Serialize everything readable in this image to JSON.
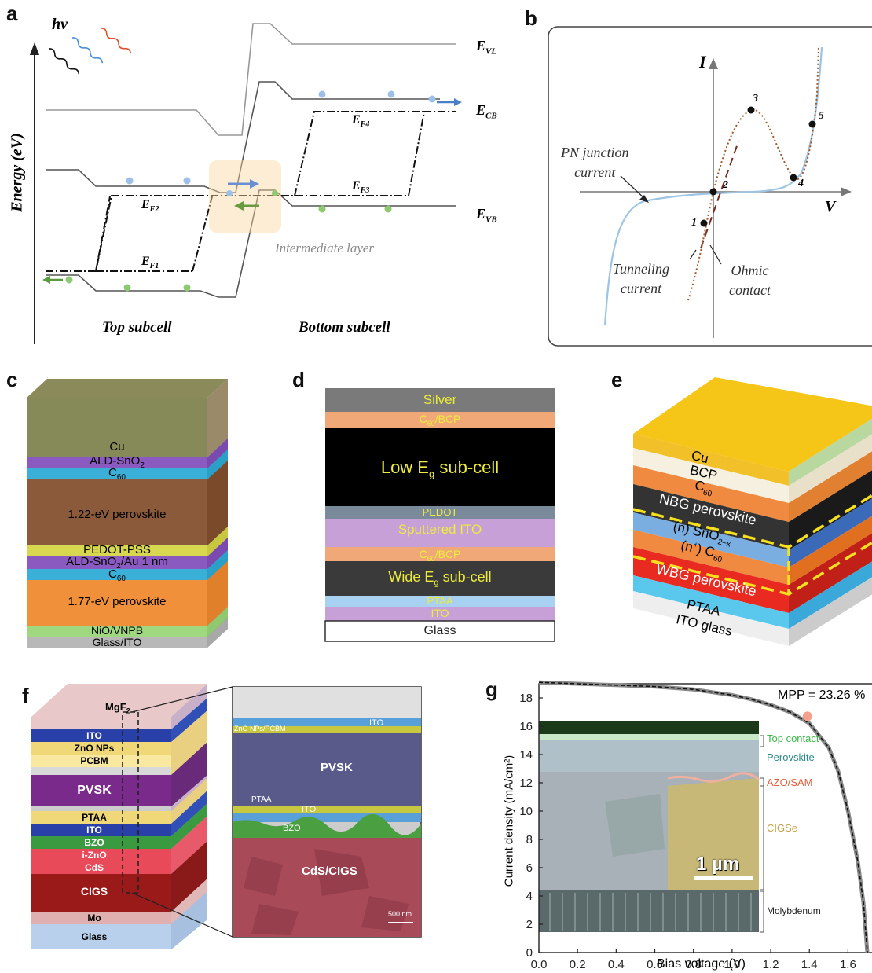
{
  "panel_labels": [
    "a",
    "b",
    "c",
    "d",
    "e",
    "f",
    "g"
  ],
  "panel_a": {
    "hv": "hv",
    "y_axis": "Energy (eV)",
    "levels": {
      "vl": "E",
      "vl_sub": "VL",
      "cb": "E",
      "cb_sub": "CB",
      "vb": "E",
      "vb_sub": "VB"
    },
    "fermi": {
      "f1": "E",
      "f1_sub": "F1",
      "f2": "E",
      "f2_sub": "F2",
      "f3": "E",
      "f3_sub": "F3",
      "f4": "E",
      "f4_sub": "F4"
    },
    "intermediate": "Intermediate layer",
    "top_subcell": "Top subcell",
    "bottom_subcell": "Bottom subcell"
  },
  "panel_b": {
    "y_axis": "I",
    "x_axis": "V",
    "pn_line1": "PN junction",
    "pn_line2": "current",
    "tunnel_line1": "Tunneling",
    "tunnel_line2": "current",
    "ohmic_line1": "Ohmic",
    "ohmic_line2": "contact",
    "points": [
      "1",
      "2",
      "3",
      "4",
      "5"
    ]
  },
  "panel_c": {
    "layers": [
      "Cu",
      "ALD-SnO",
      "C",
      "1.22-eV perovskite",
      "PEDOT-PSS",
      "ALD-SnO",
      "/Au 1 nm",
      "C",
      "1.77-eV perovskite",
      "NiO/VNPB",
      "Glass/ITO"
    ],
    "sub2": "2",
    "sub60": "60"
  },
  "panel_d": {
    "layers": [
      "Silver",
      "C",
      "/BCP",
      "Low E",
      "sub-cell",
      "PEDOT",
      "Sputtered ITO",
      "C",
      "/BCP",
      "Wide E",
      "sub-cell",
      "PTAA",
      "ITO",
      "Glass"
    ],
    "sub60": "60",
    "subg": "g"
  },
  "panel_e": {
    "layers": [
      "Cu",
      "BCP",
      "C",
      "NBG perovskite",
      "(n) SnO",
      "(n",
      "+",
      ") C",
      "WBG perovskite",
      "PTAA",
      "ITO glass"
    ],
    "sub60": "60",
    "sub2x": "2−x"
  },
  "panel_f": {
    "stack": [
      "MgF",
      "ITO",
      "ZnO NPs",
      "PCBM",
      "PVSK",
      "PTAA",
      "ITO",
      "BZO",
      "i-ZnO",
      "CdS",
      "CIGS",
      "Mo",
      "Glass"
    ],
    "mgf_sub": "2",
    "sem": [
      "ZnO NPs/PCBM",
      "ITO",
      "PVSK",
      "PTAA",
      "ITO",
      "BZO",
      "CdS/CIGS",
      "500 nm"
    ]
  },
  "chart_data": {
    "type": "line",
    "title": "",
    "xlabel": "Bias voltage (V)",
    "ylabel": "Current density (mA/cm²)",
    "xlim": [
      0,
      1.7
    ],
    "ylim": [
      0,
      19
    ],
    "x_ticks": [
      "0.0",
      "0.2",
      "0.4",
      "0.6",
      "0.8",
      "1.0",
      "1.2",
      "1.4",
      "1.6"
    ],
    "y_ticks": [
      "0",
      "2",
      "4",
      "6",
      "8",
      "10",
      "12",
      "14",
      "16",
      "18"
    ],
    "series": [
      {
        "x": [
          0,
          0.2,
          0.4,
          0.6,
          0.8,
          1.0,
          1.1,
          1.2,
          1.3,
          1.4,
          1.5,
          1.55,
          1.6,
          1.65,
          1.68,
          1.7
        ],
        "y": [
          19.1,
          19.0,
          18.9,
          18.8,
          18.6,
          18.2,
          17.9,
          17.5,
          17.0,
          16.2,
          14.5,
          12.8,
          10.0,
          6.5,
          3.5,
          0
        ]
      }
    ],
    "mpp_point": {
      "x": 1.39,
      "y": 16.7
    },
    "annotation": "MPP = 23.26 %",
    "inset_labels": [
      "Top contact",
      "Perovskite",
      "AZO/SAM",
      "CIGSe",
      "Molybdenum"
    ],
    "scale_bar": "1 µm",
    "colors": {
      "curve": "#111111",
      "mpp": "#f4a08a",
      "top_contact": "#3cb84a",
      "perovskite": "#2e8a8a",
      "azo": "#e06040",
      "cigse": "#c8a24a"
    },
    "grid": false
  }
}
